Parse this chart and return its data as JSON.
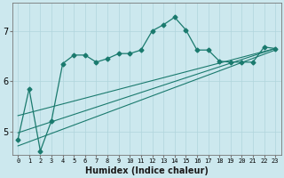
{
  "xlabel": "Humidex (Indice chaleur)",
  "background_color": "#cce8ee",
  "line_color": "#1a7a6e",
  "xlim": [
    -0.5,
    23.5
  ],
  "ylim": [
    4.55,
    7.55
  ],
  "yticks": [
    5,
    6,
    7
  ],
  "xticks": [
    0,
    1,
    2,
    3,
    4,
    5,
    6,
    7,
    8,
    9,
    10,
    11,
    12,
    13,
    14,
    15,
    16,
    17,
    18,
    19,
    20,
    21,
    22,
    23
  ],
  "curve_x": [
    0,
    1,
    2,
    3,
    4,
    5,
    6,
    7,
    8,
    9,
    10,
    11,
    12,
    13,
    14,
    15,
    16,
    17,
    18,
    19,
    20,
    21,
    22,
    23
  ],
  "curve_y": [
    4.85,
    5.85,
    4.62,
    5.22,
    6.35,
    6.52,
    6.52,
    6.38,
    6.45,
    6.55,
    6.55,
    6.62,
    7.0,
    7.12,
    7.27,
    7.02,
    6.62,
    6.62,
    6.4,
    6.38,
    6.38,
    6.38,
    6.68,
    6.65
  ],
  "line1_x": [
    0,
    23
  ],
  "line1_y": [
    5.32,
    6.65
  ],
  "line2_x": [
    0,
    23
  ],
  "line2_y": [
    4.98,
    6.65
  ],
  "line3_x": [
    0,
    23
  ],
  "line3_y": [
    4.72,
    6.62
  ],
  "figsize": [
    3.2,
    2.0
  ],
  "dpi": 100
}
